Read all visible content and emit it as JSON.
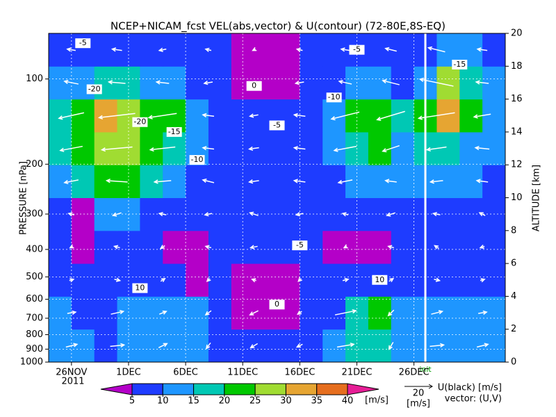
{
  "chart_data": {
    "type": "contour",
    "title": "NCEP+NICAM_fcst VEL(abs,vector) & U(contour)  (72-80E,8S-EQ)",
    "ylabel": "PRESSURE [nPa]",
    "y2label": "ALTITUDE [km]",
    "year_label": "2011",
    "xlim": [
      "2011-11-24",
      "2012-01-03"
    ],
    "xticks": [
      {
        "value": "2011-11-26",
        "label": "26NOV"
      },
      {
        "value": "2011-12-01",
        "label": "1DEC"
      },
      {
        "value": "2011-12-06",
        "label": "6DEC"
      },
      {
        "value": "2011-12-11",
        "label": "11DEC"
      },
      {
        "value": "2011-12-16",
        "label": "16DEC"
      },
      {
        "value": "2011-12-21",
        "label": "21DEC"
      },
      {
        "value": "2011-12-26",
        "label": "26DEC"
      }
    ],
    "ylim": [
      1000,
      69
    ],
    "log_y": true,
    "yticks": [
      100,
      200,
      300,
      400,
      500,
      600,
      700,
      800,
      900,
      1000
    ],
    "y2lim": [
      0,
      20
    ],
    "y2ticks": [
      0,
      2,
      4,
      6,
      8,
      10,
      12,
      14,
      16,
      18,
      20
    ],
    "init": {
      "label": "init",
      "x": "2011-12-27"
    },
    "field": {
      "grid_x": [
        "2011-11-24",
        "2011-11-26",
        "2011-11-28",
        "2011-11-30",
        "2011-12-02",
        "2011-12-04",
        "2011-12-06",
        "2011-12-08",
        "2011-12-10",
        "2011-12-12",
        "2011-12-14",
        "2011-12-16",
        "2011-12-18",
        "2011-12-20",
        "2011-12-22",
        "2011-12-24",
        "2011-12-26",
        "2011-12-28",
        "2011-12-30",
        "2012-01-01",
        "2012-01-03"
      ],
      "grid_y": [
        0,
        2,
        4,
        6,
        8,
        10,
        12,
        14,
        16,
        18,
        20
      ],
      "values": [
        [
          12,
          12,
          9,
          13,
          12,
          13,
          12,
          9,
          7,
          6,
          7,
          8,
          12,
          16,
          18,
          14,
          13,
          12,
          13,
          12
        ],
        [
          11,
          9,
          8,
          12,
          13,
          12,
          11,
          8,
          4,
          3,
          4,
          7,
          9,
          17,
          21,
          12,
          12,
          11,
          12,
          11
        ],
        [
          8,
          7,
          6,
          8,
          7,
          6,
          4,
          6,
          4,
          3,
          4,
          6,
          7,
          9,
          8,
          9,
          7,
          8,
          9,
          8
        ],
        [
          7,
          4,
          6,
          7,
          6,
          3,
          4,
          6,
          7,
          6,
          8,
          6,
          4,
          3,
          4,
          8,
          7,
          9,
          6,
          8
        ],
        [
          9,
          3,
          12,
          10,
          8,
          7,
          8,
          9,
          8,
          7,
          6,
          8,
          9,
          7,
          6,
          9,
          7,
          6,
          7,
          8
        ],
        [
          14,
          18,
          22,
          21,
          16,
          12,
          9,
          7,
          8,
          8,
          7,
          8,
          9,
          12,
          13,
          10,
          13,
          12,
          10,
          9
        ],
        [
          17,
          23,
          27,
          26,
          22,
          18,
          12,
          9,
          8,
          7,
          8,
          9,
          11,
          18,
          22,
          13,
          16,
          18,
          14,
          10
        ],
        [
          16,
          24,
          31,
          28,
          22,
          20,
          14,
          9,
          7,
          6,
          8,
          9,
          12,
          22,
          24,
          15,
          22,
          30,
          22,
          12
        ],
        [
          10,
          14,
          18,
          15,
          12,
          10,
          8,
          6,
          4,
          3,
          4,
          6,
          9,
          12,
          10,
          8,
          14,
          28,
          18,
          10
        ],
        [
          7,
          8,
          9,
          8,
          6,
          5,
          6,
          5,
          3,
          2,
          3,
          5,
          7,
          8,
          6,
          6,
          9,
          14,
          10,
          8
        ]
      ]
    },
    "levels": [
      5,
      10,
      15,
      20,
      25,
      30,
      35,
      40
    ],
    "level_colors": [
      "#b400c8",
      "#1e3cff",
      "#1e96ff",
      "#00c8b4",
      "#00c800",
      "#a0dc32",
      "#e6a532",
      "#e66e1e",
      "#e61e96"
    ],
    "colorbar_unit": "[m/s]",
    "vectors": {
      "u": [
        [
          8,
          10,
          6,
          -3,
          -5,
          -4,
          12,
          -3,
          10,
          8
        ],
        [
          6,
          9,
          5,
          -4,
          -6,
          -3,
          15,
          -4,
          8,
          6
        ],
        [
          3,
          4,
          3,
          -2,
          -3,
          -2,
          4,
          3,
          4,
          3
        ],
        [
          -2,
          -4,
          -3,
          -4,
          -5,
          -4,
          -2,
          -4,
          -3,
          -3
        ],
        [
          -4,
          -6,
          -5,
          -5,
          -6,
          -5,
          -4,
          -6,
          -5,
          -4
        ],
        [
          -10,
          -15,
          -12,
          -8,
          -7,
          -8,
          -10,
          -8,
          -9,
          -8
        ],
        [
          -16,
          -22,
          -18,
          -8,
          -7,
          -8,
          -16,
          -12,
          -14,
          -10
        ],
        [
          -18,
          -26,
          -20,
          -8,
          -6,
          -8,
          -20,
          -20,
          -26,
          -12
        ],
        [
          -10,
          -12,
          -9,
          -6,
          -3,
          -6,
          -9,
          -12,
          -24,
          -9
        ],
        [
          -6,
          -7,
          -5,
          -4,
          -2,
          -4,
          -6,
          -8,
          -12,
          -7
        ]
      ],
      "v": [
        [
          2,
          1,
          3,
          -4,
          -3,
          -2,
          2,
          -5,
          1,
          2
        ],
        [
          1,
          2,
          2,
          -3,
          -3,
          -2,
          3,
          -4,
          2,
          1
        ],
        [
          1,
          -1,
          2,
          -2,
          1,
          -2,
          1,
          2,
          -1,
          1
        ],
        [
          -1,
          1,
          -2,
          1,
          -1,
          2,
          -1,
          1,
          2,
          -1
        ],
        [
          1,
          -2,
          1,
          -1,
          2,
          -1,
          1,
          -2,
          1,
          2
        ],
        [
          -2,
          1,
          -1,
          2,
          -1,
          1,
          -2,
          1,
          -1,
          1
        ],
        [
          -3,
          -2,
          -2,
          1,
          -1,
          1,
          -3,
          -4,
          -2,
          1
        ],
        [
          -4,
          -3,
          -3,
          1,
          -1,
          1,
          -5,
          -6,
          -4,
          -2
        ],
        [
          2,
          1,
          1,
          -1,
          1,
          -1,
          2,
          3,
          5,
          1
        ],
        [
          1,
          1,
          -1,
          1,
          -1,
          1,
          1,
          2,
          3,
          1
        ]
      ],
      "key": {
        "speed": 20,
        "unit": "[m/s]"
      },
      "legend_lines": [
        "U(black) [m/s]",
        "vector: (U,V)"
      ]
    },
    "contour_labels": [
      {
        "text": "-5",
        "x": "2011-11-27",
        "y": 19.4
      },
      {
        "text": "-20",
        "x": "2011-11-28",
        "y": 16.6
      },
      {
        "text": "-20",
        "x": "2011-12-02",
        "y": 14.6
      },
      {
        "text": "-15",
        "x": "2011-12-05",
        "y": 14.0
      },
      {
        "text": "-10",
        "x": "2011-12-07",
        "y": 12.3
      },
      {
        "text": "-5",
        "x": "2011-12-14",
        "y": 14.4
      },
      {
        "text": "0",
        "x": "2011-12-12",
        "y": 16.8
      },
      {
        "text": "-5",
        "x": "2011-12-21",
        "y": 19.0
      },
      {
        "text": "-10",
        "x": "2011-12-19",
        "y": 16.1
      },
      {
        "text": "-5",
        "x": "2011-12-16",
        "y": 7.1
      },
      {
        "text": "0",
        "x": "2011-12-14",
        "y": 3.5
      },
      {
        "text": "10",
        "x": "2011-12-02",
        "y": 4.5
      },
      {
        "text": "10",
        "x": "2011-12-23",
        "y": 5.0
      },
      {
        "text": "-15",
        "x": "2011-12-30",
        "y": 18.1
      }
    ]
  }
}
